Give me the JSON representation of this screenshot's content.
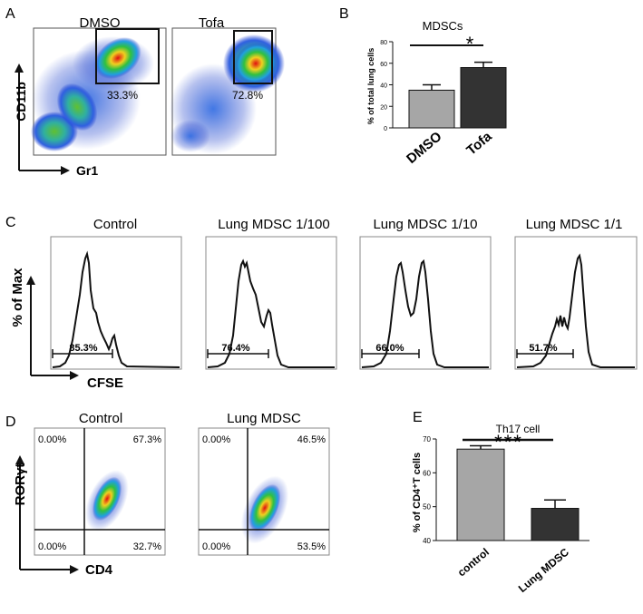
{
  "panel_letters": {
    "a": "A",
    "b": "B",
    "c": "C",
    "d": "D",
    "e": "E"
  },
  "panel_a": {
    "y_axis": "CD11b",
    "x_axis": "Gr1",
    "plots": [
      {
        "title": "DMSO",
        "gate_percent": "33.3%"
      },
      {
        "title": "Tofa",
        "gate_percent": "72.8%"
      }
    ]
  },
  "panel_c": {
    "y_axis": "% of Max",
    "x_axis": "CFSE",
    "histograms": [
      {
        "title": "Control",
        "percent": "85.3%"
      },
      {
        "title": "Lung MDSC 1/100",
        "percent": "76.4%"
      },
      {
        "title": "Lung MDSC 1/10",
        "percent": "66.0%"
      },
      {
        "title": "Lung MDSC 1/1",
        "percent": "51.7%"
      }
    ]
  },
  "panel_d": {
    "y_axis": "RORγt",
    "x_axis": "CD4",
    "plots": [
      {
        "title": "Control",
        "ul": "0.00%",
        "ur": "67.3%",
        "ll": "0.00%",
        "lr": "32.7%"
      },
      {
        "title": "Lung MDSC",
        "ul": "0.00%",
        "ur": "46.5%",
        "ll": "0.00%",
        "lr": "53.5%"
      }
    ]
  },
  "chart_data": [
    {
      "type": "bar",
      "title": "MDSCs",
      "ylabel": "% of total lung cells",
      "xlabel": "",
      "categories": [
        "DMSO",
        "Tofa"
      ],
      "values": [
        35,
        56
      ],
      "errors": [
        5,
        5
      ],
      "ylim": [
        0,
        80
      ],
      "yticks": [
        "0",
        "20",
        "40",
        "60",
        "80"
      ],
      "significance": "*",
      "colors": [
        "#a6a6a6",
        "#333333"
      ]
    },
    {
      "type": "bar",
      "title": "Th17 cell",
      "ylabel": "% of CD4⁺T cells",
      "xlabel": "",
      "categories": [
        "control",
        "Lung MDSC"
      ],
      "values": [
        67,
        49.5
      ],
      "errors": [
        1,
        2.5
      ],
      "ylim": [
        40,
        70
      ],
      "yticks": [
        "40",
        "50",
        "60",
        "70"
      ],
      "significance": "***",
      "colors": [
        "#a6a6a6",
        "#333333"
      ]
    }
  ]
}
